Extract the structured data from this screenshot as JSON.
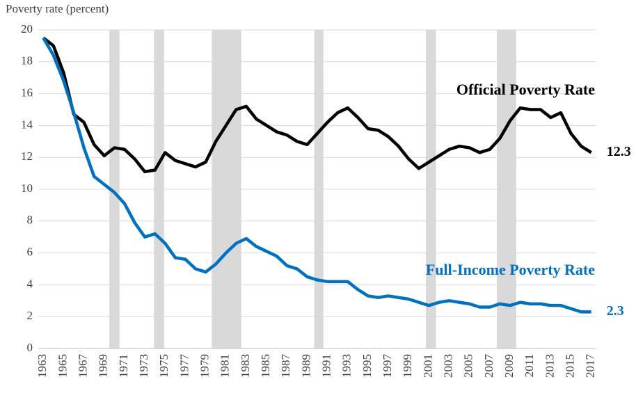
{
  "chart_data": {
    "type": "line",
    "y_label": "Poverty rate (percent)",
    "x": [
      1963,
      1964,
      1965,
      1966,
      1967,
      1968,
      1969,
      1970,
      1971,
      1972,
      1973,
      1974,
      1975,
      1976,
      1977,
      1978,
      1979,
      1980,
      1981,
      1982,
      1983,
      1984,
      1985,
      1986,
      1987,
      1988,
      1989,
      1990,
      1991,
      1992,
      1993,
      1994,
      1995,
      1996,
      1997,
      1998,
      1999,
      2000,
      2001,
      2002,
      2003,
      2004,
      2005,
      2006,
      2007,
      2008,
      2009,
      2010,
      2011,
      2012,
      2013,
      2014,
      2015,
      2016,
      2017
    ],
    "series": [
      {
        "name": "Official Poverty Rate",
        "color": "#000000",
        "values": [
          19.5,
          19.0,
          17.3,
          14.7,
          14.2,
          12.8,
          12.1,
          12.6,
          12.5,
          11.9,
          11.1,
          11.2,
          12.3,
          11.8,
          11.6,
          11.4,
          11.7,
          13.0,
          14.0,
          15.0,
          15.2,
          14.4,
          14.0,
          13.6,
          13.4,
          13.0,
          12.8,
          13.5,
          14.2,
          14.8,
          15.1,
          14.5,
          13.8,
          13.7,
          13.3,
          12.7,
          11.9,
          11.3,
          11.7,
          12.1,
          12.5,
          12.7,
          12.6,
          12.3,
          12.5,
          13.2,
          14.3,
          15.1,
          15.0,
          15.0,
          14.5,
          14.8,
          13.5,
          12.7,
          12.3
        ]
      },
      {
        "name": "Full-Income Poverty Rate",
        "color": "#0070c0",
        "values": [
          19.5,
          18.4,
          16.8,
          14.8,
          12.6,
          10.8,
          10.3,
          9.8,
          9.1,
          7.9,
          7.0,
          7.2,
          6.6,
          5.7,
          5.6,
          5.0,
          4.8,
          5.3,
          6.0,
          6.6,
          6.9,
          6.4,
          6.1,
          5.8,
          5.2,
          5.0,
          4.5,
          4.3,
          4.2,
          4.2,
          4.2,
          3.7,
          3.3,
          3.2,
          3.3,
          3.2,
          3.1,
          2.9,
          2.7,
          2.9,
          3.0,
          2.9,
          2.8,
          2.6,
          2.6,
          2.8,
          2.7,
          2.9,
          2.8,
          2.8,
          2.7,
          2.7,
          2.5,
          2.3,
          2.3
        ]
      }
    ],
    "shaded_periods": [
      [
        1969.5,
        1970.5
      ],
      [
        1973.9,
        1974.9
      ],
      [
        1979.6,
        1982.5
      ],
      [
        1989.7,
        1990.6
      ],
      [
        2000.7,
        2001.7
      ],
      [
        2007.7,
        2009.6
      ]
    ],
    "shade_color": "#d9d9d9",
    "xlim": [
      1962.5,
      2017.5
    ],
    "xticks": [
      1963,
      1965,
      1967,
      1969,
      1971,
      1973,
      1975,
      1977,
      1979,
      1981,
      1983,
      1985,
      1987,
      1989,
      1991,
      1993,
      1995,
      1997,
      1999,
      2001,
      2003,
      2005,
      2007,
      2009,
      2011,
      2013,
      2015,
      2017
    ],
    "ylim": [
      0,
      20
    ],
    "yticks": [
      0,
      2,
      4,
      6,
      8,
      10,
      12,
      14,
      16,
      18,
      20
    ],
    "grid": true
  }
}
